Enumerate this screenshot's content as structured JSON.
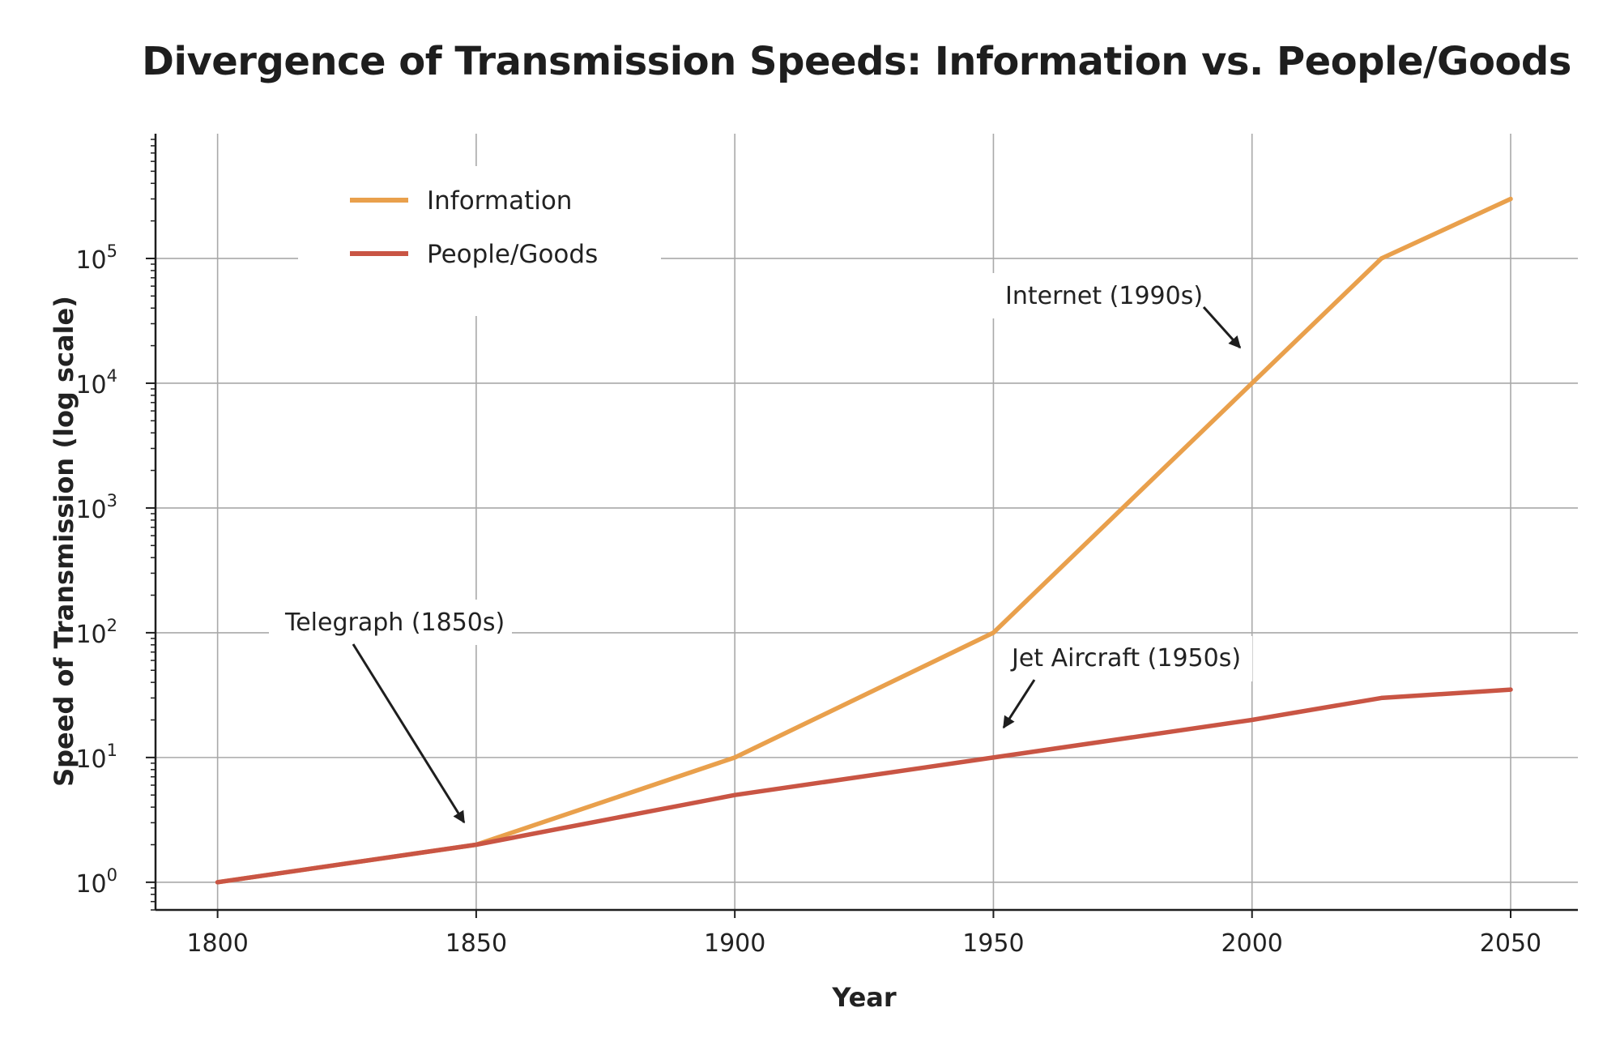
{
  "chart_data": {
    "type": "line",
    "title": "Divergence of Transmission Speeds: Information vs. People/Goods",
    "xlabel": "Year",
    "ylabel": "Speed of Transmission (log scale)",
    "y_scale": "log",
    "grid": true,
    "xlim": [
      1788,
      2063
    ],
    "ylim": [
      0.6,
      1000000
    ],
    "x_ticks": [
      1800,
      1850,
      1900,
      1950,
      2000,
      2050
    ],
    "y_ticks": [
      1,
      10,
      100,
      1000,
      10000,
      100000
    ],
    "y_tick_exponents": [
      "0",
      "1",
      "2",
      "3",
      "4",
      "5"
    ],
    "legend_position": "top-left",
    "series": [
      {
        "name": "Information",
        "color": "#e9a04c",
        "x": [
          1800,
          1850,
          1900,
          1950,
          2000,
          2025,
          2050
        ],
        "y": [
          1,
          2,
          10,
          100,
          10000,
          100000,
          300000
        ]
      },
      {
        "name": "People/Goods",
        "color": "#c95544",
        "x": [
          1800,
          1850,
          1900,
          1950,
          2000,
          2025,
          2050
        ],
        "y": [
          1,
          2,
          5,
          10,
          20,
          30,
          35
        ]
      }
    ],
    "annotations": [
      {
        "text": "Telegraph (1850s)",
        "x": 1850,
        "y": 2
      },
      {
        "text": "Internet (1990s)",
        "x": 1998,
        "y": 10000
      },
      {
        "text": "Jet Aircraft (1950s)",
        "x": 1952,
        "y": 13
      }
    ]
  }
}
